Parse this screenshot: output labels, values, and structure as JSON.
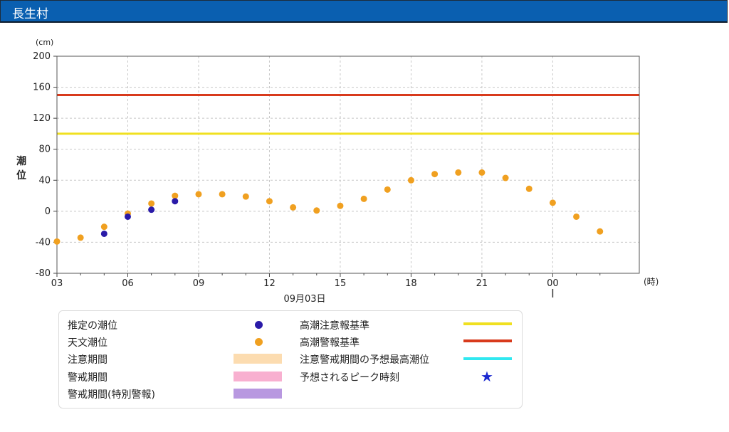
{
  "header": {
    "title": "長生村"
  },
  "chart_data": {
    "type": "scatter",
    "title": "",
    "xlabel": "09月03日",
    "x_unit": "(時)",
    "ylabel": "潮位",
    "y_unit": "(cm)",
    "ylim": [
      -80,
      200
    ],
    "yticks": [
      -80,
      -40,
      0,
      40,
      80,
      120,
      160,
      200
    ],
    "xlim": [
      "2024-09-03T03:00",
      "2024-09-04T03:40"
    ],
    "xticks": [
      "06",
      "09",
      "12",
      "15",
      "18",
      "21",
      "00",
      "03"
    ],
    "grid": true,
    "series": [
      {
        "name": "天文潮位",
        "color": "#f0a020",
        "marker": "circle",
        "points": [
          {
            "x": "04:00",
            "y": -34
          },
          {
            "x": "05:00",
            "y": -20
          },
          {
            "x": "06:00",
            "y": -3
          },
          {
            "x": "07:00",
            "y": 10
          },
          {
            "x": "08:00",
            "y": 20
          },
          {
            "x": "09:00",
            "y": 22
          },
          {
            "x": "10:00",
            "y": 22
          },
          {
            "x": "11:00",
            "y": 19
          },
          {
            "x": "12:00",
            "y": 13
          },
          {
            "x": "13:00",
            "y": 5
          },
          {
            "x": "14:00",
            "y": 1
          },
          {
            "x": "15:00",
            "y": 7
          },
          {
            "x": "16:00",
            "y": 16
          },
          {
            "x": "17:00",
            "y": 28
          },
          {
            "x": "18:00",
            "y": 40
          },
          {
            "x": "19:00",
            "y": 48
          },
          {
            "x": "20:00",
            "y": 50
          },
          {
            "x": "21:00",
            "y": 50
          },
          {
            "x": "22:00",
            "y": 43
          },
          {
            "x": "23:00",
            "y": 29
          },
          {
            "x": "00:00",
            "y": 11
          },
          {
            "x": "01:00",
            "y": -7
          },
          {
            "x": "02:00",
            "y": -26
          },
          {
            "x": "03:00",
            "y": -39
          }
        ]
      },
      {
        "name": "推定の潮位",
        "color": "#2a1aa8",
        "marker": "circle",
        "points": [
          {
            "x": "05:00",
            "y": -29
          },
          {
            "x": "06:00",
            "y": -7
          },
          {
            "x": "07:00",
            "y": 2
          },
          {
            "x": "08:00",
            "y": 13
          }
        ]
      }
    ],
    "reference_lines": [
      {
        "name": "高潮注意報基準",
        "y": 100,
        "color": "#f0e020"
      },
      {
        "name": "高潮警報基準",
        "y": 150,
        "color": "#d83a1c"
      }
    ]
  },
  "legend": {
    "items": [
      {
        "label": "推定の潮位",
        "kind": "dot",
        "color": "#2a1aa8"
      },
      {
        "label": "天文潮位",
        "kind": "dot",
        "color": "#f0a020"
      },
      {
        "label": "注意期間",
        "kind": "swatch",
        "color": "#fcdcb0"
      },
      {
        "label": "警戒期間",
        "kind": "swatch",
        "color": "#f8b0d0"
      },
      {
        "label": "警戒期間(特別警報)",
        "kind": "swatch",
        "color": "#b898e0"
      },
      {
        "label": "高潮注意報基準",
        "kind": "line",
        "color": "#f0e020"
      },
      {
        "label": "高潮警報基準",
        "kind": "line",
        "color": "#d83a1c"
      },
      {
        "label": "注意警戒期間の予想最高潮位",
        "kind": "line",
        "color": "#30e8f0"
      },
      {
        "label": "予想されるピーク時刻",
        "kind": "star",
        "color": "#1a28d0"
      }
    ]
  }
}
